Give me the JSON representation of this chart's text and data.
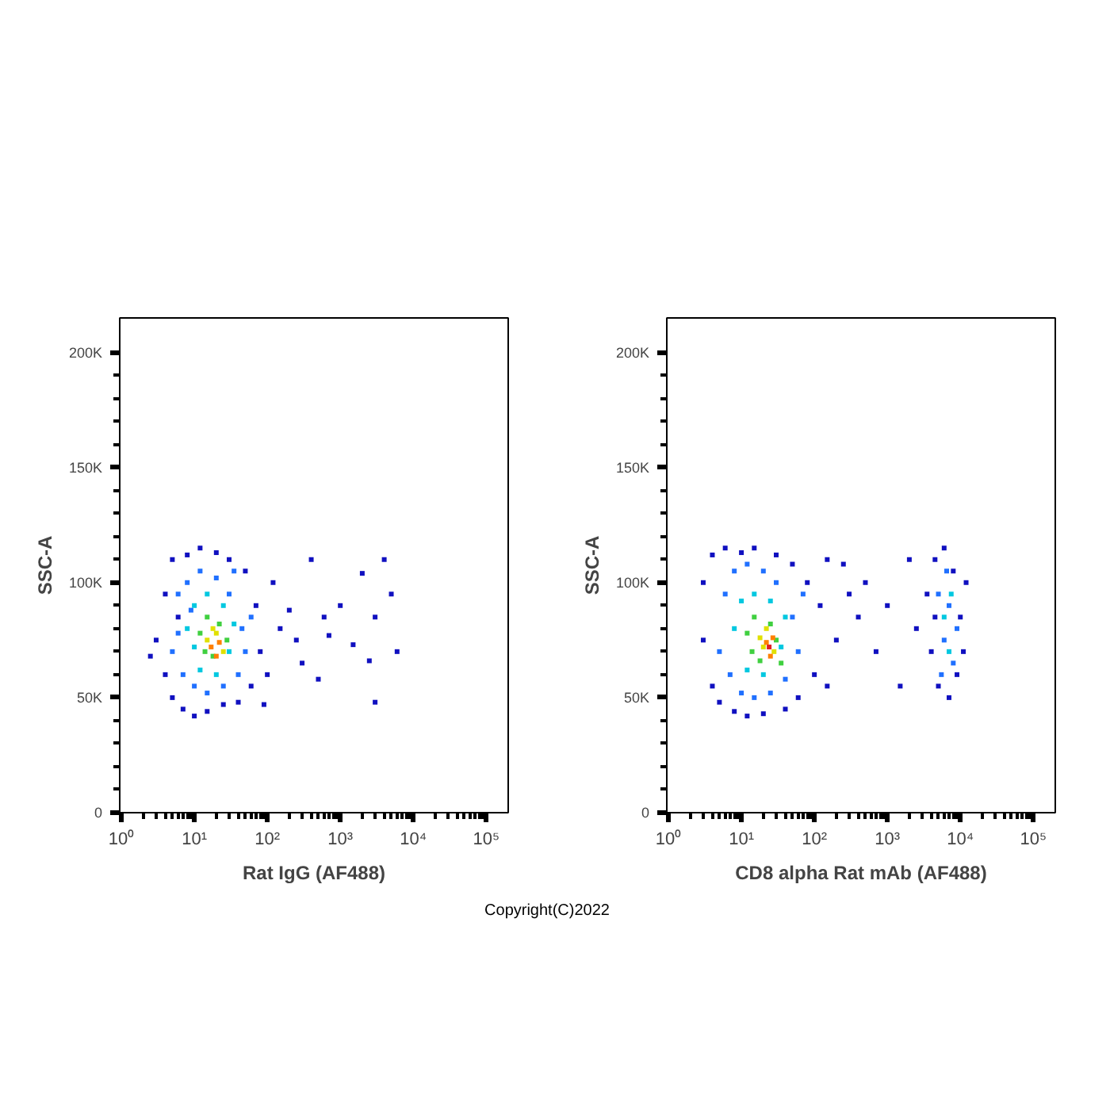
{
  "chart_data": [
    {
      "type": "scatter",
      "xlabel": "Rat IgG (AF488)",
      "ylabel": "SSC-A",
      "log": "x",
      "marker": "square",
      "grid": false,
      "xlim": [
        0.95,
        200000
      ],
      "ylim": [
        0,
        215000
      ],
      "xticks": [
        {
          "value": 1,
          "label": "10⁰"
        },
        {
          "value": 10,
          "label": "10¹"
        },
        {
          "value": 100,
          "label": "10²"
        },
        {
          "value": 1000,
          "label": "10³"
        },
        {
          "value": 10000,
          "label": "10⁴"
        },
        {
          "value": 100000,
          "label": "10⁵"
        }
      ],
      "yticks": [
        {
          "value": 0,
          "label": "0"
        },
        {
          "value": 50000,
          "label": "50K"
        },
        {
          "value": 100000,
          "label": "100K"
        },
        {
          "value": 150000,
          "label": "150K"
        },
        {
          "value": 200000,
          "label": "200K"
        }
      ],
      "series": [
        {
          "color": "#1010c0",
          "x": [
            3,
            4,
            4,
            5,
            5,
            6,
            7,
            8,
            10,
            12,
            15,
            20,
            25,
            30,
            40,
            50,
            60,
            70,
            80,
            100,
            120,
            150,
            200,
            300,
            400,
            500,
            700,
            1000,
            1500,
            2000,
            2500,
            3000,
            4000,
            5000,
            6000,
            3000,
            600,
            250,
            90,
            2.5
          ],
          "values": [
            75000,
            95000,
            60000,
            110000,
            50000,
            85000,
            45000,
            112000,
            42000,
            115000,
            44000,
            113000,
            47000,
            110000,
            48000,
            105000,
            55000,
            90000,
            70000,
            60000,
            100000,
            80000,
            88000,
            65000,
            110000,
            58000,
            77000,
            90000,
            73000,
            104000,
            66000,
            85000,
            110000,
            95000,
            70000,
            48000,
            85000,
            75000,
            47000,
            68000
          ]
        },
        {
          "color": "#2070ff",
          "x": [
            5,
            6,
            7,
            8,
            10,
            12,
            15,
            20,
            25,
            30,
            40,
            45,
            6,
            35,
            50,
            9,
            60
          ],
          "values": [
            70000,
            95000,
            60000,
            100000,
            55000,
            105000,
            52000,
            102000,
            55000,
            95000,
            60000,
            80000,
            78000,
            105000,
            70000,
            88000,
            85000
          ]
        },
        {
          "color": "#00c8e0",
          "x": [
            8,
            10,
            12,
            15,
            20,
            25,
            30,
            35,
            10
          ],
          "values": [
            80000,
            90000,
            62000,
            95000,
            60000,
            90000,
            70000,
            82000,
            72000
          ]
        },
        {
          "color": "#40d040",
          "x": [
            12,
            15,
            18,
            22,
            28,
            14
          ],
          "values": [
            78000,
            85000,
            68000,
            82000,
            75000,
            70000
          ]
        },
        {
          "color": "#e0e000",
          "x": [
            15,
            20,
            25,
            18
          ],
          "values": [
            75000,
            78000,
            70000,
            80000
          ]
        },
        {
          "color": "#ff8000",
          "x": [
            17,
            22,
            20
          ],
          "values": [
            72000,
            74000,
            68000
          ]
        }
      ]
    },
    {
      "type": "scatter",
      "xlabel": "CD8 alpha Rat mAb (AF488)",
      "ylabel": "SSC-A",
      "log": "x",
      "marker": "square",
      "grid": false,
      "xlim": [
        0.95,
        200000
      ],
      "ylim": [
        0,
        215000
      ],
      "xticks": [
        {
          "value": 1,
          "label": "10⁰"
        },
        {
          "value": 10,
          "label": "10¹"
        },
        {
          "value": 100,
          "label": "10²"
        },
        {
          "value": 1000,
          "label": "10³"
        },
        {
          "value": 10000,
          "label": "10⁴"
        },
        {
          "value": 100000,
          "label": "10⁵"
        }
      ],
      "yticks": [
        {
          "value": 0,
          "label": "0"
        },
        {
          "value": 50000,
          "label": "50K"
        },
        {
          "value": 100000,
          "label": "100K"
        },
        {
          "value": 150000,
          "label": "150K"
        },
        {
          "value": 200000,
          "label": "200K"
        }
      ],
      "annotations": [
        "Copyright(C)2022"
      ],
      "series": [
        {
          "color": "#1010c0",
          "x": [
            3,
            3,
            4,
            4,
            5,
            6,
            8,
            10,
            12,
            15,
            20,
            30,
            40,
            50,
            60,
            80,
            100,
            120,
            150,
            200,
            250,
            300,
            400,
            500,
            700,
            1000,
            1500,
            2000,
            2500,
            3500,
            4000,
            4500,
            5000,
            6000,
            7000,
            8000,
            9000,
            10000,
            12000,
            11000,
            4500,
            150
          ],
          "values": [
            75000,
            100000,
            55000,
            112000,
            48000,
            115000,
            44000,
            113000,
            42000,
            115000,
            43000,
            112000,
            45000,
            108000,
            50000,
            100000,
            60000,
            90000,
            110000,
            75000,
            108000,
            95000,
            85000,
            100000,
            70000,
            90000,
            55000,
            110000,
            80000,
            95000,
            70000,
            110000,
            55000,
            115000,
            50000,
            105000,
            60000,
            85000,
            100000,
            70000,
            85000,
            55000
          ]
        },
        {
          "color": "#2070ff",
          "x": [
            5,
            6,
            7,
            8,
            10,
            12,
            15,
            20,
            25,
            30,
            40,
            50,
            60,
            70,
            5000,
            6000,
            7000,
            8000,
            6500,
            9000,
            5500
          ],
          "values": [
            70000,
            95000,
            60000,
            105000,
            52000,
            108000,
            50000,
            105000,
            52000,
            100000,
            58000,
            85000,
            70000,
            95000,
            95000,
            75000,
            90000,
            65000,
            105000,
            80000,
            60000
          ]
        },
        {
          "color": "#00c8e0",
          "x": [
            8,
            10,
            12,
            15,
            20,
            25,
            35,
            40,
            6000,
            7000,
            7500
          ],
          "values": [
            80000,
            92000,
            62000,
            95000,
            60000,
            92000,
            72000,
            85000,
            85000,
            70000,
            95000
          ]
        },
        {
          "color": "#40d040",
          "x": [
            12,
            15,
            18,
            25,
            30,
            14,
            35
          ],
          "values": [
            78000,
            85000,
            66000,
            82000,
            75000,
            70000,
            65000
          ]
        },
        {
          "color": "#e0e000",
          "x": [
            18,
            22,
            28,
            20
          ],
          "values": [
            76000,
            80000,
            70000,
            72000
          ]
        },
        {
          "color": "#ff8000",
          "x": [
            22,
            25,
            27
          ],
          "values": [
            74000,
            68000,
            76000
          ]
        },
        {
          "color": "#e02020",
          "x": [
            24
          ],
          "values": [
            72000
          ]
        }
      ]
    }
  ]
}
